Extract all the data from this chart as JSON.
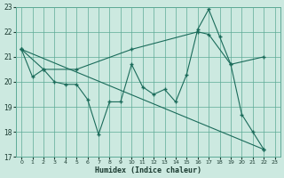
{
  "bg_color": "#cce9e0",
  "grid_color": "#5daa96",
  "line_color": "#1a6b5a",
  "xlabel": "Humidex (Indice chaleur)",
  "xlim": [
    -0.5,
    23.5
  ],
  "ylim": [
    17,
    23
  ],
  "yticks": [
    17,
    18,
    19,
    20,
    21,
    22,
    23
  ],
  "xticks": [
    0,
    1,
    2,
    3,
    4,
    5,
    6,
    7,
    8,
    9,
    10,
    11,
    12,
    13,
    14,
    15,
    16,
    17,
    18,
    19,
    20,
    21,
    22,
    23
  ],
  "line1_x": [
    0,
    1,
    2,
    3,
    4,
    5,
    6,
    7,
    8,
    9,
    10,
    11,
    12,
    13,
    14,
    15,
    16,
    17,
    18,
    19,
    20,
    21,
    22
  ],
  "line1_y": [
    21.3,
    20.2,
    20.5,
    20.0,
    19.9,
    19.9,
    19.3,
    17.9,
    19.2,
    19.2,
    20.7,
    19.8,
    19.5,
    19.7,
    19.2,
    20.3,
    22.1,
    22.9,
    21.8,
    20.7,
    18.7,
    18.0,
    17.3
  ],
  "line2_x": [
    0,
    22
  ],
  "line2_y": [
    21.3,
    17.3
  ],
  "line3_x": [
    0,
    2,
    5,
    10,
    16,
    17,
    19,
    22
  ],
  "line3_y": [
    21.3,
    20.5,
    20.5,
    21.3,
    22.0,
    21.9,
    20.7,
    21.0
  ]
}
